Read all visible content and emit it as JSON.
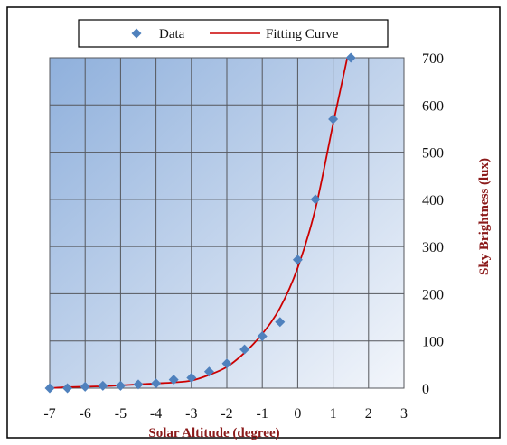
{
  "chart_data": {
    "type": "scatter",
    "xlabel": "Solar Altitude (degree)",
    "ylabel": "Sky Brightness (lux)",
    "xlim": [
      -7,
      3
    ],
    "ylim": [
      0,
      700
    ],
    "x_ticks": [
      "-7",
      "-6",
      "-5",
      "-4",
      "-3",
      "-2",
      "-1",
      "0",
      "1",
      "2",
      "3"
    ],
    "y_ticks": [
      "0",
      "100",
      "200",
      "300",
      "400",
      "500",
      "600",
      "700"
    ],
    "x_tick_values": [
      -7,
      -6,
      -5,
      -4,
      -3,
      -2,
      -1,
      0,
      1,
      2,
      3
    ],
    "y_tick_values": [
      0,
      100,
      200,
      300,
      400,
      500,
      600,
      700
    ],
    "grid": true,
    "legend_position": "top",
    "series": [
      {
        "name": "Data",
        "kind": "scatter",
        "marker": "diamond",
        "color": "#4f81bd",
        "x": [
          -7,
          -6.5,
          -6,
          -5.5,
          -5,
          -4.5,
          -4,
          -3.5,
          -3,
          -2.5,
          -2,
          -1.5,
          -1,
          -0.5,
          0,
          0.5,
          1,
          1.5
        ],
        "y": [
          0,
          0,
          3,
          5,
          5,
          8,
          10,
          18,
          22,
          35,
          52,
          82,
          110,
          140,
          272,
          400,
          570,
          700
        ]
      },
      {
        "name": "Fitting Curve",
        "kind": "line",
        "color": "#cc0000",
        "x": [
          -7,
          -6.5,
          -6,
          -5.5,
          -5,
          -4.5,
          -4,
          -3.5,
          -3,
          -2.5,
          -2,
          -1.5,
          -1,
          -0.5,
          0,
          0.5,
          1,
          1.4
        ],
        "y": [
          0,
          2,
          3,
          4,
          6,
          8,
          10,
          12,
          16,
          28,
          45,
          75,
          115,
          170,
          255,
          380,
          560,
          700
        ]
      }
    ]
  }
}
